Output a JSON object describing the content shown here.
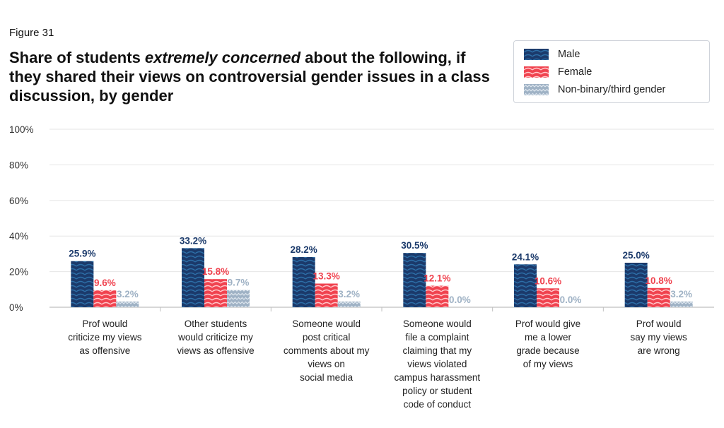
{
  "figure_label": "Figure 31",
  "title_parts": {
    "pre": "Share of students ",
    "emph": "extremely concerned",
    "post": " about the following, if they shared their views on controversial gender issues in a class discussion, by gender"
  },
  "colors": {
    "male": "#1b3a6b",
    "female": "#f0434f",
    "nonbinary": "#9fb2c5",
    "grid": "#e5e5e5",
    "axis": "#bfbfbf"
  },
  "chart_data": {
    "type": "bar",
    "title": "Share of students extremely concerned about the following, if they shared their views on controversial gender issues in a class discussion, by gender",
    "categories": [
      [
        "Prof would",
        "criticize my views",
        "as offensive"
      ],
      [
        "Other students",
        "would criticize my",
        "views as offensive"
      ],
      [
        "Someone would",
        "post critical",
        "comments about my",
        "views on",
        "social media"
      ],
      [
        "Someone would",
        "file a complaint",
        "claiming that my",
        "views violated",
        "campus harassment",
        "policy or student",
        "code of conduct"
      ],
      [
        "Prof would give",
        "me a lower",
        "grade because",
        "of my views"
      ],
      [
        "Prof would",
        "say my views",
        "are wrong"
      ]
    ],
    "series": [
      {
        "name": "Male",
        "values": [
          25.9,
          33.2,
          28.2,
          30.5,
          24.1,
          25.0
        ],
        "labels": [
          "25.9%",
          "33.2%",
          "28.2%",
          "30.5%",
          "24.1%",
          "25.0%"
        ]
      },
      {
        "name": "Female",
        "values": [
          9.6,
          15.8,
          13.3,
          12.1,
          10.6,
          10.8
        ],
        "labels": [
          "9.6%",
          "15.8%",
          "13.3%",
          "12.1%",
          "10.6%",
          "10.8%"
        ]
      },
      {
        "name": "Non-binary/third gender",
        "values": [
          3.2,
          9.7,
          3.2,
          0.0,
          0.0,
          3.2
        ],
        "labels": [
          "3.2%",
          "9.7%",
          "3.2%",
          "0.0%",
          "0.0%",
          "3.2%"
        ]
      }
    ],
    "yticks": [
      "0%",
      "20%",
      "40%",
      "60%",
      "80%",
      "100%"
    ],
    "ylim": [
      0,
      100
    ],
    "grid": true,
    "legend_position": "top-right"
  }
}
